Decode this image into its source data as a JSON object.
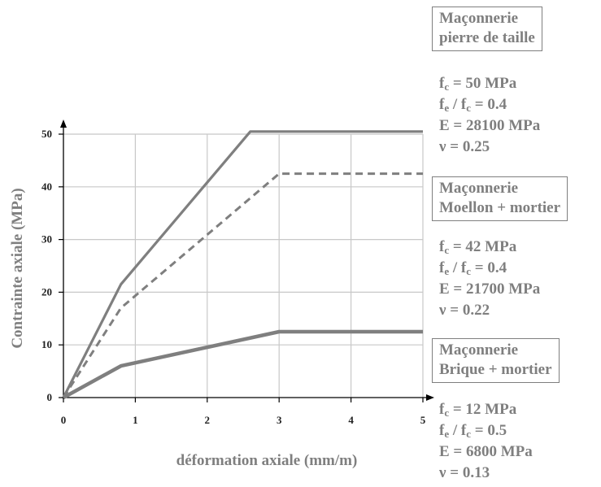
{
  "chart_data": {
    "type": "line",
    "title": "",
    "xlabel": "déformation axiale (mm/m)",
    "ylabel": "Contrainte axiale (MPa)",
    "xlim": [
      0,
      5
    ],
    "ylim": [
      0,
      50
    ],
    "x_ticks": [
      0,
      1,
      2,
      3,
      4,
      5
    ],
    "y_ticks": [
      0,
      10,
      20,
      30,
      40,
      50
    ],
    "grid": true,
    "series": [
      {
        "name": "Maçonnerie pierre de taille",
        "style": "solid",
        "color": "#7f7f7f",
        "x": [
          0,
          0.8,
          2.6,
          5.0
        ],
        "y": [
          0,
          21.5,
          50.5,
          50.5
        ]
      },
      {
        "name": "Maçonnerie Moellon + mortier",
        "style": "dashed",
        "color": "#7f7f7f",
        "x": [
          0,
          0.8,
          3.0,
          5.0
        ],
        "y": [
          0,
          17,
          42.5,
          42.5
        ]
      },
      {
        "name": "Maçonnerie Brique + mortier",
        "style": "solid-thick",
        "color": "#7f7f7f",
        "x": [
          0,
          0.8,
          3.0,
          5.0
        ],
        "y": [
          0,
          6,
          12.5,
          12.5
        ]
      }
    ]
  },
  "legend": {
    "pierre": {
      "title_line1": "Maçonnerie",
      "title_line2": "pierre de taille",
      "fc": "f",
      "fc_sub": "c",
      "fc_val": " = 50 MPa",
      "ratio_a": "f",
      "ratio_a_sub": "e",
      "ratio_mid": " / f",
      "ratio_b_sub": "c",
      "ratio_val": " = 0.4",
      "E": "E = 28100 MPa",
      "nu": "ν = 0.25"
    },
    "moellon": {
      "title_line1": "Maçonnerie",
      "title_line2": "Moellon + mortier",
      "fc": "f",
      "fc_sub": "c",
      "fc_val": " = 42 MPa",
      "ratio_a": "f",
      "ratio_a_sub": "e",
      "ratio_mid": " / f",
      "ratio_b_sub": "c",
      "ratio_val": " = 0.4",
      "E": "E = 21700 MPa",
      "nu": "ν = 0.22"
    },
    "brique": {
      "title_line1": "Maçonnerie",
      "title_line2": "Brique + mortier",
      "fc": "f",
      "fc_sub": "c",
      "fc_val": " = 12 MPa",
      "ratio_a": "f",
      "ratio_a_sub": "e",
      "ratio_mid": " / f",
      "ratio_b_sub": "c",
      "ratio_val": " = 0.5",
      "E": "E = 6800 MPa",
      "nu": "ν = 0.13"
    }
  }
}
